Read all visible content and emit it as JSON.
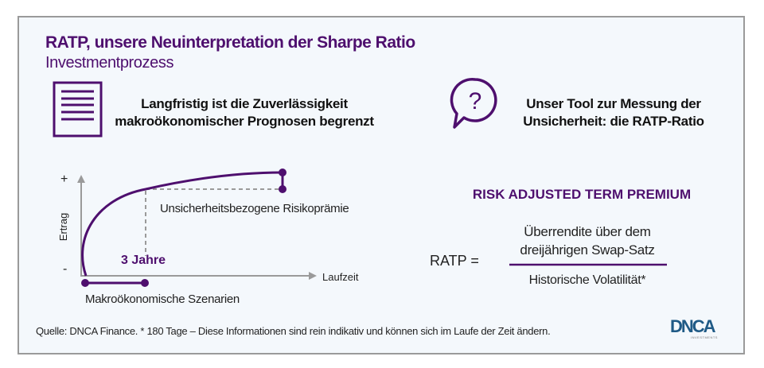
{
  "header": {
    "title": "RATP, unsere Neuinterpretation der Sharpe Ratio",
    "subtitle": "Investmentprozess"
  },
  "left_block": {
    "icon": "document-icon",
    "heading_lines": [
      "Langfristig ist die Zuverlässigkeit",
      "makroökonomischer Prognosen begrenzt"
    ]
  },
  "right_block": {
    "icon": "question-bubble-icon",
    "heading_lines": [
      "Unser Tool zur Messung der",
      "Unsicherheit: die RATP-Ratio"
    ]
  },
  "diagram": {
    "y_axis_label": "Ertrag",
    "y_plus": "+",
    "y_minus": "-",
    "x_axis_label": "Laufzeit",
    "marker_label": "3 Jahre",
    "premium_label": "Unsicherheitsbezogene Risikoprämie",
    "range_label": "Makroökonomische Szenarien"
  },
  "formula": {
    "title": "RISK ADJUSTED TERM PREMIUM",
    "lhs": "RATP =",
    "numerator_lines": [
      "Überrendite über dem",
      "dreijährigen Swap-Satz"
    ],
    "denominator": "Historische Volatilität*"
  },
  "footer": {
    "source": "Quelle: DNCA Finance. * 180 Tage – Diese Informationen sind rein indikativ und können sich im Laufe der Zeit ändern."
  },
  "logo": {
    "name": "DNCA",
    "tagline": "INVESTMENTS"
  },
  "colors": {
    "accent": "#4e0f6e",
    "axis": "#9a9a9a",
    "background": "#f4f8fc"
  }
}
